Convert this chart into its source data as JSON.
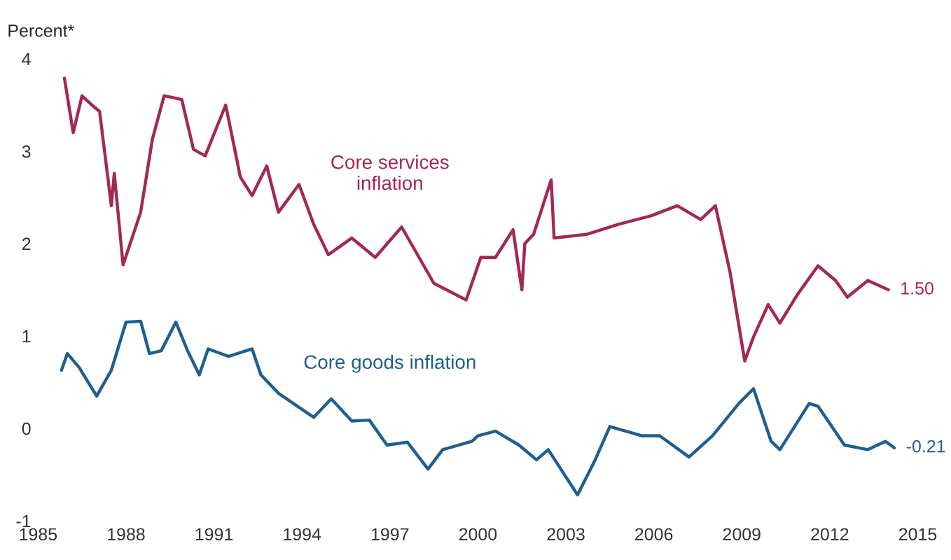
{
  "chart_data": {
    "type": "line",
    "ylabel": "Percent*",
    "xlim": [
      1985,
      2015
    ],
    "xticks": [
      1985,
      1988,
      1991,
      1994,
      1997,
      2000,
      2003,
      2006,
      2009,
      2012,
      2015
    ],
    "ylim": [
      -1,
      4
    ],
    "yticks": [
      -1,
      0,
      1,
      2,
      3,
      4
    ],
    "grid": false,
    "legend": false,
    "series": [
      {
        "name": "Core services inflation",
        "color": "#a3294e",
        "x": [
          1985.9,
          1986.2,
          1986.5,
          1986.8,
          1987.1,
          1987.5,
          1987.6,
          1987.9,
          1988.5,
          1988.9,
          1989.3,
          1989.9,
          1990.3,
          1990.7,
          1991.4,
          1991.9,
          1992.3,
          1992.8,
          1993.2,
          1993.9,
          1994.4,
          1994.9,
          1995.7,
          1996.5,
          1997.4,
          1998.5,
          1999.6,
          2000.1,
          2000.6,
          2001.2,
          2001.5,
          2001.6,
          2001.9,
          2002.5,
          2002.6,
          2003.7,
          2004.8,
          2005.9,
          2006.8,
          2007.6,
          2008.1,
          2008.6,
          2009.1,
          2009.4,
          2009.9,
          2010.3,
          2010.9,
          2011.6,
          2012.2,
          2012.6,
          2013.3,
          2014.0
        ],
        "values": [
          3.79,
          3.2,
          3.6,
          3.51,
          3.43,
          2.41,
          2.76,
          1.77,
          2.34,
          3.13,
          3.6,
          3.56,
          3.02,
          2.95,
          3.5,
          2.72,
          2.52,
          2.84,
          2.34,
          2.64,
          2.21,
          1.88,
          2.06,
          1.85,
          2.18,
          1.57,
          1.39,
          1.85,
          1.85,
          2.15,
          1.5,
          2.0,
          2.1,
          2.69,
          2.06,
          2.1,
          2.21,
          2.3,
          2.41,
          2.26,
          2.41,
          1.69,
          0.73,
          0.99,
          1.34,
          1.14,
          1.45,
          1.76,
          1.6,
          1.42,
          1.6,
          1.5
        ]
      },
      {
        "name": "Core goods inflation",
        "color": "#1f5f8f",
        "x": [
          1985.8,
          1986.0,
          1986.4,
          1987.0,
          1987.5,
          1988.0,
          1988.5,
          1988.8,
          1989.2,
          1989.7,
          1990.1,
          1990.5,
          1990.8,
          1991.5,
          1992.3,
          1992.6,
          1993.2,
          1994.4,
          1995.0,
          1995.7,
          1996.3,
          1996.9,
          1997.6,
          1998.3,
          1998.8,
          1999.8,
          2000.0,
          2000.6,
          2001.4,
          2002.0,
          2002.4,
          2003.4,
          2004.0,
          2004.5,
          2005.6,
          2006.2,
          2007.2,
          2008.0,
          2008.9,
          2009.4,
          2010.0,
          2010.3,
          2011.3,
          2011.6,
          2012.5,
          2013.3,
          2013.9,
          2014.2
        ],
        "values": [
          0.63,
          0.81,
          0.66,
          0.35,
          0.63,
          1.15,
          1.16,
          0.81,
          0.84,
          1.15,
          0.84,
          0.58,
          0.86,
          0.78,
          0.86,
          0.58,
          0.38,
          0.12,
          0.32,
          0.08,
          0.09,
          -0.18,
          -0.15,
          -0.44,
          -0.23,
          -0.14,
          -0.08,
          -0.03,
          -0.18,
          -0.34,
          -0.23,
          -0.72,
          -0.34,
          0.02,
          -0.08,
          -0.08,
          -0.31,
          -0.08,
          0.27,
          0.43,
          -0.14,
          -0.23,
          0.27,
          0.24,
          -0.18,
          -0.23,
          -0.14,
          -0.21
        ]
      }
    ],
    "annotations": [
      {
        "text": "1.50",
        "x": 2014.0,
        "y": 1.5
      },
      {
        "text": "-0.21",
        "x": 2014.2,
        "y": -0.21
      }
    ]
  }
}
